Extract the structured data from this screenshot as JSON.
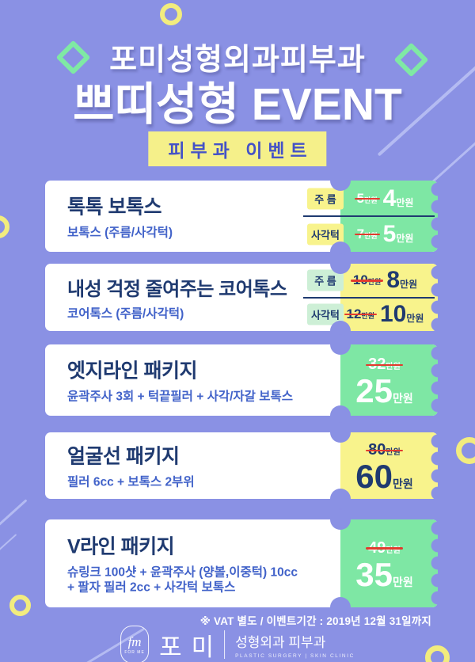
{
  "header": {
    "clinic_title": "포미성형외과피부과",
    "event_title": "쁘띠성형 EVENT",
    "badge": "피부과 이벤트"
  },
  "cards": [
    {
      "title": "톡톡 보톡스",
      "subtitle_lines": [
        "보톡스 (주름/사각턱)"
      ],
      "ticket_color": "green",
      "label_color": "yellow",
      "rows": [
        {
          "label": "주 름",
          "old": "5",
          "old_unit": "만원",
          "new": "4",
          "new_unit": "만원"
        },
        {
          "label": "사각턱",
          "old": "7",
          "old_unit": "만원",
          "new": "5",
          "new_unit": "만원"
        }
      ]
    },
    {
      "title": "내성 걱정 줄여주는 코어톡스",
      "subtitle_lines": [
        "코어톡스 (주름/사각턱)"
      ],
      "ticket_color": "yellow",
      "label_color": "green",
      "rows": [
        {
          "label": "주 름",
          "old": "10",
          "old_unit": "만원",
          "new": "8",
          "new_unit": "만원"
        },
        {
          "label": "사각턱",
          "old": "12",
          "old_unit": "만원",
          "new": "10",
          "new_unit": "만원"
        }
      ]
    },
    {
      "title": "엣지라인 패키지",
      "subtitle_lines": [
        "윤곽주사 3회 + 턱끝필러 + 사각/자갈 보톡스"
      ],
      "ticket_color": "green",
      "price": {
        "old": "32",
        "old_unit": "만원",
        "new": "25",
        "new_unit": "만원"
      }
    },
    {
      "title": "얼굴선 패키지",
      "subtitle_lines": [
        "필러 6cc + 보톡스 2부위"
      ],
      "ticket_color": "yellow",
      "price": {
        "old": "80",
        "old_unit": "만원",
        "new": "60",
        "new_unit": "만원"
      }
    },
    {
      "title": "V라인 패키지",
      "subtitle_lines": [
        "슈링크 100샷 + 윤곽주사 (양볼,이중턱) 10cc",
        "+ 팔자 필러 2cc + 사각턱 보톡스"
      ],
      "ticket_color": "green",
      "price": {
        "old": "49",
        "old_unit": "만원",
        "new": "35",
        "new_unit": "만원"
      }
    }
  ],
  "footer": {
    "note": "※ VAT 별도 / 이벤트기간 : 2019년 12월 31일까지"
  },
  "logo": {
    "monogram": "fm",
    "monogram_sub": "FOR ME",
    "name": "포미",
    "dept": "성형외과 피부과",
    "dept_en": "PLASTIC SURGERY | SKIN CLINIC"
  },
  "colors": {
    "background": "#8A91E4",
    "ticket_green": "#7EE7A4",
    "ticket_yellow": "#F8F38C",
    "label_green": "#CDEFD6",
    "title_navy": "#1F3A70",
    "subtitle_blue": "#4162C9",
    "strike_red": "#E23B2E",
    "badge_bg": "#F5F08A",
    "badge_text": "#4452C7",
    "ring_yellow": "#F2EC7E",
    "diamond_green": "#7FE9A4"
  }
}
